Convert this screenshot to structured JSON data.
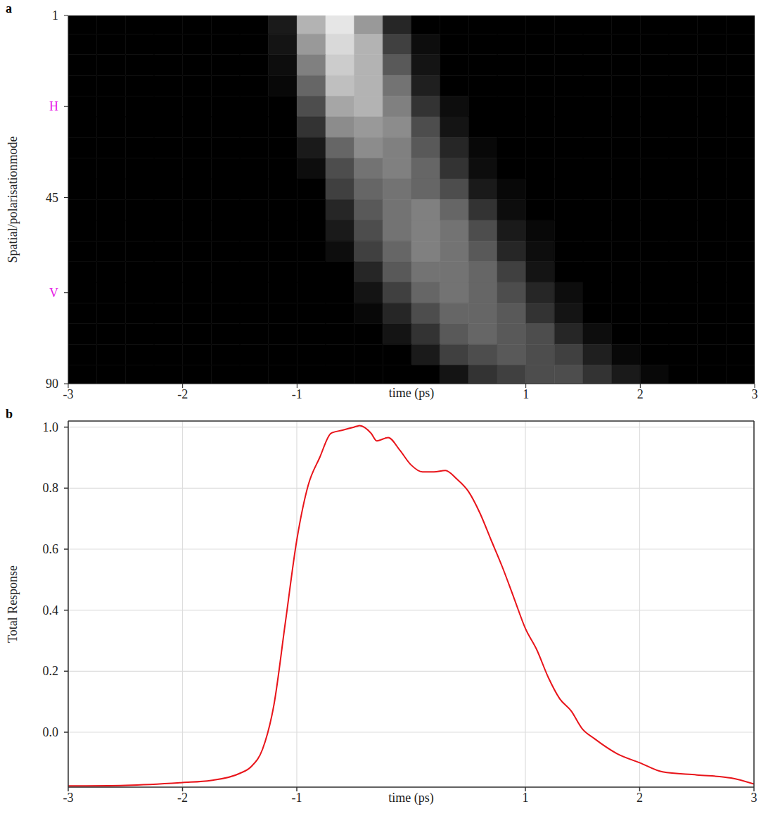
{
  "chart_data": [
    {
      "type": "heatmap",
      "panel_label": "a",
      "x_label": "time (ps)",
      "y_label": "Spatial/polarisationmode",
      "xlim": [
        -3,
        3
      ],
      "ylim": [
        1,
        90
      ],
      "xticks": [
        -3,
        -2,
        -1,
        1,
        2,
        3
      ],
      "yticks": [
        1,
        {
          "value": 23,
          "label": "H"
        },
        45,
        {
          "value": 68,
          "label": "V"
        },
        90
      ],
      "x_edges": [
        -3,
        -2.75,
        -2.5,
        -2.25,
        -2,
        -1.75,
        -1.5,
        -1.25,
        -1,
        -0.75,
        -0.5,
        -0.25,
        0,
        0.25,
        0.5,
        0.75,
        1,
        1.25,
        1.5,
        1.75,
        2,
        2.25,
        2.5,
        2.75,
        3
      ],
      "y_edges": [
        0.5,
        5.5,
        10.5,
        15.5,
        20.5,
        25.5,
        30.5,
        35.5,
        40.5,
        45.5,
        50.5,
        55.5,
        60.5,
        65.5,
        70.5,
        75.5,
        80.5,
        85.5,
        90.5
      ],
      "cells": [
        [
          0,
          0,
          0,
          0,
          0,
          0,
          0,
          0.1,
          0.7,
          0.9,
          0.6,
          0.15,
          0,
          0,
          0,
          0,
          0,
          0,
          0,
          0,
          0,
          0,
          0,
          0
        ],
        [
          0,
          0,
          0,
          0,
          0,
          0,
          0,
          0.08,
          0.6,
          0.85,
          0.7,
          0.25,
          0.05,
          0,
          0,
          0,
          0,
          0,
          0,
          0,
          0,
          0,
          0,
          0
        ],
        [
          0,
          0,
          0,
          0,
          0,
          0,
          0,
          0.05,
          0.5,
          0.8,
          0.7,
          0.35,
          0.08,
          0,
          0,
          0,
          0,
          0,
          0,
          0,
          0,
          0,
          0,
          0
        ],
        [
          0,
          0,
          0,
          0,
          0,
          0,
          0,
          0.03,
          0.4,
          0.75,
          0.7,
          0.45,
          0.12,
          0,
          0,
          0,
          0,
          0,
          0,
          0,
          0,
          0,
          0,
          0
        ],
        [
          0,
          0,
          0,
          0,
          0,
          0,
          0,
          0,
          0.3,
          0.65,
          0.7,
          0.5,
          0.2,
          0.05,
          0,
          0,
          0,
          0,
          0,
          0,
          0,
          0,
          0,
          0
        ],
        [
          0,
          0,
          0,
          0,
          0,
          0,
          0,
          0,
          0.2,
          0.55,
          0.6,
          0.55,
          0.3,
          0.08,
          0,
          0,
          0,
          0,
          0,
          0,
          0,
          0,
          0,
          0
        ],
        [
          0,
          0,
          0,
          0,
          0,
          0,
          0,
          0,
          0.1,
          0.4,
          0.55,
          0.5,
          0.35,
          0.15,
          0.03,
          0,
          0,
          0,
          0,
          0,
          0,
          0,
          0,
          0
        ],
        [
          0,
          0,
          0,
          0,
          0,
          0,
          0,
          0,
          0.05,
          0.3,
          0.45,
          0.5,
          0.4,
          0.2,
          0.05,
          0,
          0,
          0,
          0,
          0,
          0,
          0,
          0,
          0
        ],
        [
          0,
          0,
          0,
          0,
          0,
          0,
          0,
          0,
          0,
          0.25,
          0.4,
          0.45,
          0.4,
          0.3,
          0.1,
          0.03,
          0,
          0,
          0,
          0,
          0,
          0,
          0,
          0
        ],
        [
          0,
          0,
          0,
          0,
          0,
          0,
          0,
          0,
          0,
          0.15,
          0.35,
          0.45,
          0.5,
          0.4,
          0.2,
          0.05,
          0,
          0,
          0,
          0,
          0,
          0,
          0,
          0
        ],
        [
          0,
          0,
          0,
          0,
          0,
          0,
          0,
          0,
          0,
          0.1,
          0.3,
          0.45,
          0.5,
          0.45,
          0.3,
          0.1,
          0.03,
          0,
          0,
          0,
          0,
          0,
          0,
          0
        ],
        [
          0,
          0,
          0,
          0,
          0,
          0,
          0,
          0,
          0,
          0.05,
          0.25,
          0.4,
          0.5,
          0.45,
          0.35,
          0.15,
          0.05,
          0,
          0,
          0,
          0,
          0,
          0,
          0
        ],
        [
          0,
          0,
          0,
          0,
          0,
          0,
          0,
          0,
          0,
          0,
          0.15,
          0.35,
          0.45,
          0.45,
          0.4,
          0.25,
          0.08,
          0,
          0,
          0,
          0,
          0,
          0,
          0
        ],
        [
          0,
          0,
          0,
          0,
          0,
          0,
          0,
          0,
          0,
          0,
          0.08,
          0.25,
          0.4,
          0.45,
          0.4,
          0.3,
          0.15,
          0.05,
          0,
          0,
          0,
          0,
          0,
          0
        ],
        [
          0,
          0,
          0,
          0,
          0,
          0,
          0,
          0,
          0,
          0,
          0.03,
          0.15,
          0.3,
          0.4,
          0.4,
          0.35,
          0.2,
          0.08,
          0,
          0,
          0,
          0,
          0,
          0
        ],
        [
          0,
          0,
          0,
          0,
          0,
          0,
          0,
          0,
          0,
          0,
          0,
          0.08,
          0.2,
          0.35,
          0.4,
          0.35,
          0.3,
          0.15,
          0.05,
          0,
          0,
          0,
          0,
          0
        ],
        [
          0,
          0,
          0,
          0,
          0,
          0,
          0,
          0,
          0,
          0,
          0,
          0,
          0.1,
          0.25,
          0.3,
          0.35,
          0.3,
          0.25,
          0.12,
          0.03,
          0,
          0,
          0,
          0
        ],
        [
          0,
          0,
          0,
          0,
          0,
          0,
          0,
          0,
          0,
          0,
          0,
          0,
          0,
          0.08,
          0.2,
          0.25,
          0.3,
          0.3,
          0.2,
          0.1,
          0.03,
          0,
          0,
          0
        ]
      ]
    },
    {
      "type": "line",
      "panel_label": "b",
      "x_label": "time (ps)",
      "y_label": "Total Response",
      "color": "#e8141a",
      "grid": true,
      "xlim": [
        -3,
        3
      ],
      "ylim": [
        -0.18,
        1.02
      ],
      "xticks": [
        -3,
        -2,
        -1,
        1,
        2,
        3
      ],
      "yticks": [
        {
          "value": 0,
          "label": "0.0"
        },
        0.2,
        0.4,
        0.6,
        0.8,
        {
          "value": 1,
          "label": "1.0"
        }
      ],
      "x": [
        -3,
        -2.5,
        -2,
        -1.75,
        -1.5,
        -1.4,
        -1.3,
        -1.2,
        -1.1,
        -1.0,
        -0.9,
        -0.8,
        -0.7,
        -0.6,
        -0.5,
        -0.45,
        -0.35,
        -0.3,
        -0.2,
        -0.1,
        0,
        0.1,
        0.2,
        0.3,
        0.4,
        0.5,
        0.6,
        0.7,
        0.8,
        0.9,
        1.0,
        1.1,
        1.2,
        1.3,
        1.4,
        1.5,
        1.6,
        1.8,
        2.0,
        2.2,
        2.5,
        2.8,
        3.0
      ],
      "values": [
        -0.176,
        -0.174,
        -0.165,
        -0.158,
        -0.135,
        -0.113,
        -0.056,
        0.09,
        0.36,
        0.63,
        0.81,
        0.9,
        0.98,
        0.99,
        1.0,
        1.005,
        0.98,
        0.955,
        0.966,
        0.925,
        0.876,
        0.853,
        0.853,
        0.858,
        0.83,
        0.79,
        0.72,
        0.63,
        0.54,
        0.44,
        0.34,
        0.27,
        0.18,
        0.11,
        0.07,
        0.01,
        -0.02,
        -0.07,
        -0.1,
        -0.13,
        -0.14,
        -0.15,
        -0.17
      ]
    }
  ]
}
